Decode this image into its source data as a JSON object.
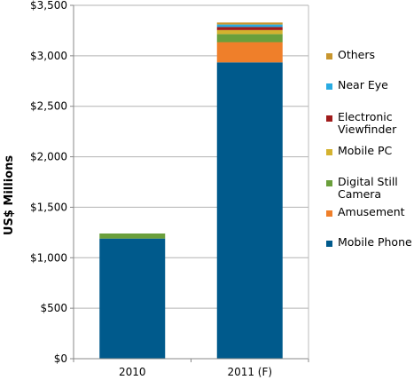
{
  "chart_data": {
    "type": "bar",
    "stacked": true,
    "categories": [
      "2010",
      "2011 (F)"
    ],
    "ylabel": "US$ Millions",
    "ylim": [
      0,
      3500
    ],
    "yticks": [
      "$0",
      "$500",
      "$1,000",
      "$1,500",
      "$2,000",
      "$2,500",
      "$3,000",
      "$3,500"
    ],
    "ytick_values": [
      0,
      500,
      1000,
      1500,
      2000,
      2500,
      3000,
      3500
    ],
    "grid": true,
    "legend_position": "right",
    "series": [
      {
        "name": "Mobile Phone",
        "color": "#005a8c",
        "values": [
          1190,
          2935
        ]
      },
      {
        "name": "Amusement",
        "color": "#ef7f2a",
        "values": [
          0,
          200
        ]
      },
      {
        "name": "Digital Still\nCamera",
        "color": "#6a9f3c",
        "values": [
          50,
          80
        ]
      },
      {
        "name": "Mobile PC",
        "color": "#d4b22f",
        "values": [
          0,
          40
        ]
      },
      {
        "name": "Electronic\nViewfinder",
        "color": "#a01b1b",
        "values": [
          0,
          30
        ]
      },
      {
        "name": "Near Eye",
        "color": "#29abe2",
        "values": [
          0,
          25
        ]
      },
      {
        "name": "Others",
        "color": "#c8962e",
        "values": [
          0,
          20
        ]
      }
    ]
  }
}
